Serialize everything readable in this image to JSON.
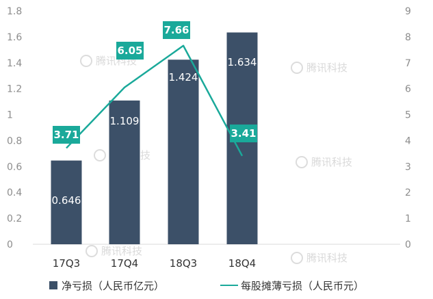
{
  "chart_data": {
    "type": "bar",
    "categories": [
      "17Q3",
      "17Q4",
      "18Q3",
      "18Q4"
    ],
    "series": [
      {
        "name": "净亏损（人民币亿元）",
        "type": "bar",
        "axis": "left",
        "values": [
          0.646,
          1.109,
          1.424,
          1.634
        ],
        "labels": [
          "0.646",
          "1.109",
          "1.424",
          "1.634"
        ],
        "color": "#3c5068"
      },
      {
        "name": "每股摊薄亏损（人民币元）",
        "type": "line",
        "axis": "right",
        "values": [
          3.71,
          6.05,
          7.66,
          3.41
        ],
        "labels": [
          "3.71",
          "6.05",
          "7.66",
          "3.41"
        ],
        "color": "#1aa99a"
      }
    ],
    "ylim_left": [
      0,
      1.8
    ],
    "yticks_left": [
      "0",
      "0.2",
      "0.4",
      "0.6",
      "0.8",
      "1",
      "1.2",
      "1.4",
      "1.6",
      "1.8"
    ],
    "ylim_right": [
      0,
      9
    ],
    "yticks_right": [
      "0",
      "1",
      "2",
      "3",
      "4",
      "5",
      "6",
      "7",
      "8",
      "9"
    ],
    "legend_position": "bottom",
    "grid": false,
    "watermark": "腾讯科技"
  }
}
